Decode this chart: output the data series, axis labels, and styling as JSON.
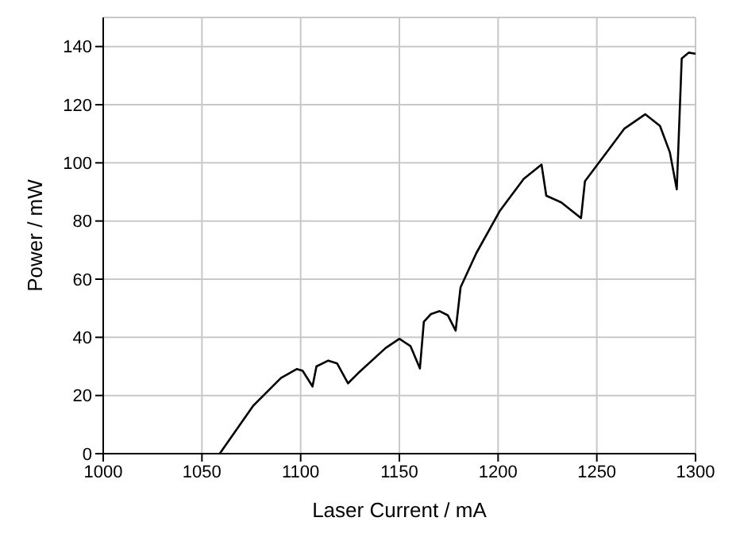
{
  "chart_data": {
    "type": "line",
    "xlabel": "Laser Current / mA",
    "ylabel": "Power / mW",
    "xlim": [
      1000,
      1300
    ],
    "xticks": [
      1000,
      1050,
      1100,
      1150,
      1200,
      1250,
      1300
    ],
    "ylim": [
      0,
      150
    ],
    "yticks": [
      0,
      20,
      40,
      60,
      80,
      100,
      120,
      140
    ],
    "grid": true,
    "marker": "none",
    "line_style": "solid",
    "series": [
      {
        "color": "#000000",
        "x": [
          1059,
          1076,
          1090,
          1098,
          1101,
          1106,
          1108,
          1114,
          1118.5,
          1124,
          1129,
          1143,
          1150,
          1155.6,
          1160.4,
          1162.4,
          1166,
          1170.4,
          1174.5,
          1178.5,
          1181,
          1189,
          1201,
          1213,
          1222,
          1224.4,
          1232,
          1242,
          1244,
          1251,
          1264,
          1274.5,
          1282,
          1287,
          1290.5,
          1293,
          1296.6,
          1300
        ],
        "values": [
          0,
          16.5,
          26,
          29.1,
          28.5,
          23.1,
          30,
          32,
          31,
          24.2,
          27.6,
          36.3,
          39.5,
          37,
          29.3,
          45.4,
          48,
          49,
          47.6,
          42.3,
          57.2,
          69,
          83.6,
          94.5,
          99.4,
          88.7,
          86.4,
          81,
          93.7,
          100,
          111.8,
          116.7,
          112.7,
          103.6,
          90.9,
          135.9,
          137.9,
          137.5
        ]
      }
    ]
  }
}
